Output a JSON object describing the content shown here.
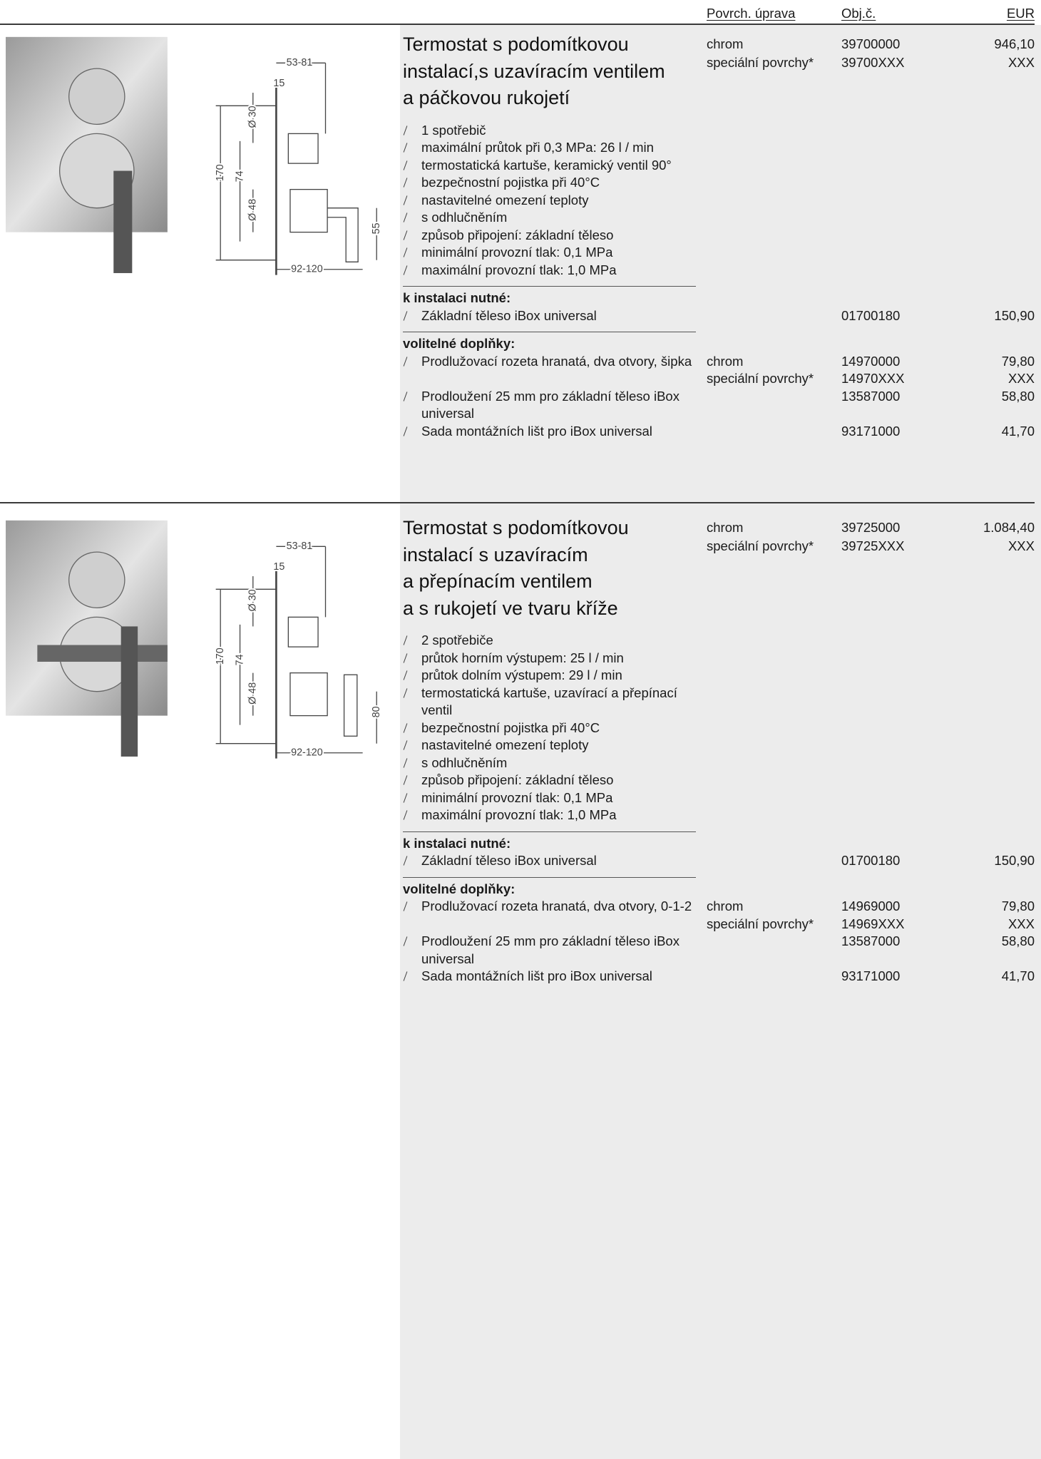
{
  "header": {
    "columns": [
      "Povrch. úprava",
      "Obj.č.",
      "EUR"
    ]
  },
  "products": [
    {
      "title": [
        "Termostat s podomítkovou",
        "instalací,s uzavíracím ventilem",
        "a páčkovou rukojetí"
      ],
      "variants": [
        {
          "finish": "chrom",
          "code": "39700000",
          "price": "946,10"
        },
        {
          "finish": "speciální povrchy*",
          "code": "39700XXX",
          "price": "XXX"
        }
      ],
      "features": [
        "1 spotřebič",
        "maximální průtok při 0,3 MPa: 26 l / min",
        "termostatická kartuše, keramický ventil 90°",
        "bezpečnostní pojistka při 40°C",
        "nastavitelné omezení teploty",
        "s odhlučněním",
        "způsob připojení: základní těleso",
        "minimální provozní tlak: 0,1 MPa",
        "maximální provozní tlak: 1,0 MPa"
      ],
      "required": {
        "label": "k instalaci nutné:",
        "items": [
          {
            "text": "Základní těleso iBox universal",
            "variants": [
              {
                "code": "01700180",
                "price": "150,90"
              }
            ]
          }
        ]
      },
      "optional": {
        "label": "volitelné doplňky:",
        "items": [
          {
            "text": "Prodlužovací rozeta hranatá, dva otvory, šipka",
            "variants": [
              {
                "finish": "chrom",
                "code": "14970000",
                "price": "79,80"
              },
              {
                "finish": "speciální povrchy*",
                "code": "14970XXX",
                "price": "XXX"
              }
            ]
          },
          {
            "text": "Prodloužení 25 mm pro základní těleso iBox universal",
            "variants": [
              {
                "code": "13587000",
                "price": "58,80"
              }
            ]
          },
          {
            "text": "Sada montážních lišt pro iBox universal",
            "variants": [
              {
                "code": "93171000",
                "price": "41,70"
              }
            ]
          }
        ]
      },
      "drawing": [
        "53-81",
        "15",
        "Ø 30",
        "170",
        "74",
        "Ø 48",
        "55",
        "92-120"
      ]
    },
    {
      "title": [
        "Termostat s podomítkovou",
        "instalací s uzavíracím",
        "a přepínacím ventilem",
        "a s rukojetí ve tvaru kříže"
      ],
      "variants": [
        {
          "finish": "chrom",
          "code": "39725000",
          "price": "1.084,40"
        },
        {
          "finish": "speciální povrchy*",
          "code": "39725XXX",
          "price": "XXX"
        }
      ],
      "features": [
        "2 spotřebiče",
        "průtok horním výstupem: 25 l / min",
        "průtok dolním výstupem: 29 l / min",
        "termostatická kartuše, uzavírací a přepínací ventil",
        "bezpečnostní pojistka při 40°C",
        "nastavitelné omezení teploty",
        "s odhlučněním",
        "způsob připojení: základní těleso",
        "minimální provozní tlak: 0,1 MPa",
        "maximální provozní tlak: 1,0 MPa"
      ],
      "required": {
        "label": "k instalaci nutné:",
        "items": [
          {
            "text": "Základní těleso iBox universal",
            "variants": [
              {
                "code": "01700180",
                "price": "150,90"
              }
            ]
          }
        ]
      },
      "optional": {
        "label": "volitelné doplňky:",
        "items": [
          {
            "text": "Prodlužovací rozeta hranatá, dva otvory, 0-1-2",
            "variants": [
              {
                "finish": "chrom",
                "code": "14969000",
                "price": "79,80"
              },
              {
                "finish": "speciální povrchy*",
                "code": "14969XXX",
                "price": "XXX"
              }
            ]
          },
          {
            "text": "Prodloužení 25 mm pro základní těleso iBox universal",
            "variants": [
              {
                "code": "13587000",
                "price": "58,80"
              }
            ]
          },
          {
            "text": "Sada montážních lišt pro iBox universal",
            "variants": [
              {
                "code": "93171000",
                "price": "41,70"
              }
            ]
          }
        ]
      },
      "drawing": [
        "53-81",
        "15",
        "Ø 30",
        "170",
        "74",
        "Ø 48",
        "80",
        "92-120"
      ]
    }
  ]
}
